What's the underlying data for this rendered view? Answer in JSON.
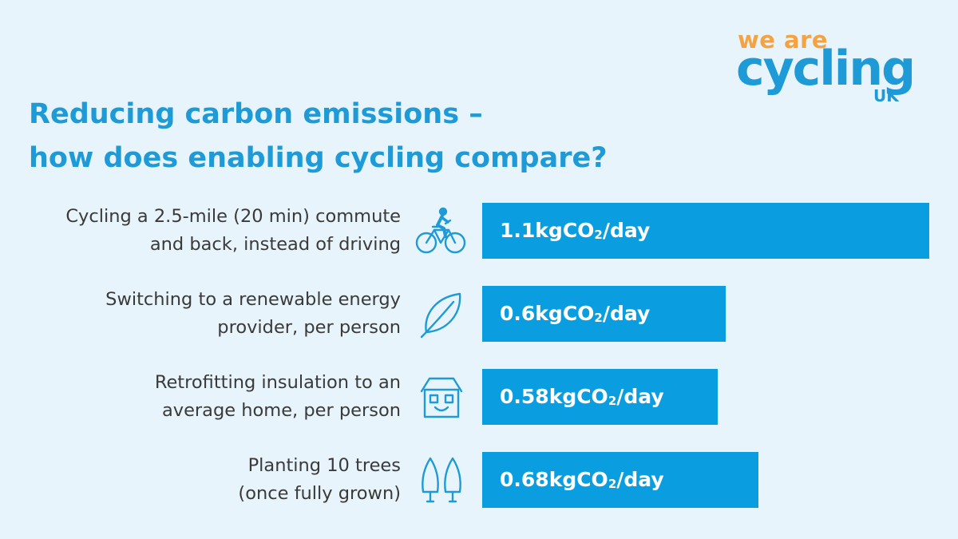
{
  "logo": {
    "line1": "we are",
    "line2": "cycling",
    "line3": "UK"
  },
  "title": {
    "line1": "Reducing carbon emissions –",
    "line2": "how does enabling cycling compare?"
  },
  "colors": {
    "background": "#e8f4fb",
    "bar": "#0a9ee0",
    "title": "#1e9bd7",
    "logo_orange": "#f4a340",
    "label_text": "#3a3a3a"
  },
  "chart_data": {
    "type": "bar",
    "orientation": "horizontal",
    "unit_prefix": "kgCO",
    "unit_subscript": "2",
    "unit_suffix": "/day",
    "xlim": [
      0,
      1.1
    ],
    "grid": false,
    "legend": "none",
    "categories": [
      {
        "label_lines": [
          "Cycling a 2.5-mile (20 min) commute",
          "and back, instead of driving"
        ],
        "icon": "bicycle-icon",
        "value": 1.1,
        "value_text": "1.1"
      },
      {
        "label_lines": [
          "Switching to a renewable energy",
          "provider, per person"
        ],
        "icon": "leaf-icon",
        "value": 0.6,
        "value_text": "0.6"
      },
      {
        "label_lines": [
          "Retrofitting insulation to an",
          "average home, per person"
        ],
        "icon": "house-icon",
        "value": 0.58,
        "value_text": "0.58"
      },
      {
        "label_lines": [
          "Planting 10 trees",
          "(once fully grown)"
        ],
        "icon": "trees-icon",
        "value": 0.68,
        "value_text": "0.68"
      }
    ]
  }
}
